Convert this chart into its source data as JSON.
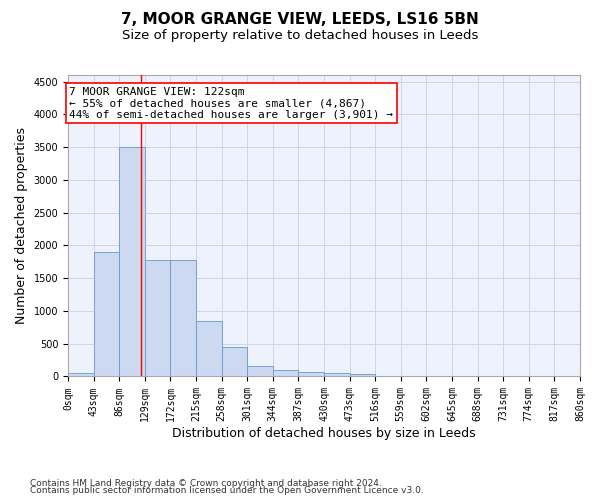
{
  "title": "7, MOOR GRANGE VIEW, LEEDS, LS16 5BN",
  "subtitle": "Size of property relative to detached houses in Leeds",
  "xlabel": "Distribution of detached houses by size in Leeds",
  "ylabel": "Number of detached properties",
  "bin_edges": [
    0,
    43,
    86,
    129,
    172,
    215,
    258,
    301,
    344,
    387,
    430,
    473,
    516,
    559,
    602,
    645,
    688,
    731,
    774,
    817,
    860
  ],
  "bar_heights": [
    50,
    1900,
    3500,
    1780,
    1780,
    850,
    450,
    160,
    100,
    65,
    55,
    35,
    0,
    0,
    0,
    0,
    0,
    0,
    0,
    0
  ],
  "bar_color": "#ccd9f0",
  "bar_edgecolor": "#6699cc",
  "vline_x": 122,
  "vline_color": "red",
  "annotation_line1": "7 MOOR GRANGE VIEW: 122sqm",
  "annotation_line2": "← 55% of detached houses are smaller (4,867)",
  "annotation_line3": "44% of semi-detached houses are larger (3,901) →",
  "ylim": [
    0,
    4600
  ],
  "yticks": [
    0,
    500,
    1000,
    1500,
    2000,
    2500,
    3000,
    3500,
    4000,
    4500
  ],
  "footer_line1": "Contains HM Land Registry data © Crown copyright and database right 2024.",
  "footer_line2": "Contains public sector information licensed under the Open Government Licence v3.0.",
  "bg_color": "#eef2fc",
  "grid_color": "#c8cfe8",
  "title_fontsize": 11,
  "subtitle_fontsize": 9.5,
  "axis_label_fontsize": 9,
  "tick_fontsize": 7,
  "footer_fontsize": 6.5,
  "annotation_fontsize": 8
}
